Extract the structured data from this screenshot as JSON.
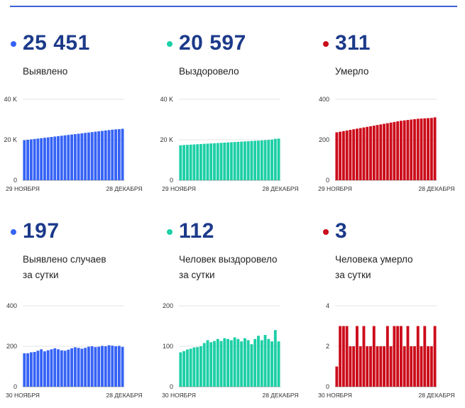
{
  "panels": [
    {
      "value": "25 451",
      "label_lines": [
        "Выявлено"
      ],
      "color": "#3663f5",
      "dot_color": "#3663f5",
      "x_start": "29 НОЯБРЯ",
      "x_end": "28 ДЕКАБРЯ"
    },
    {
      "value": "20 597",
      "label_lines": [
        "Выздоровело"
      ],
      "color": "#1ccfa6",
      "dot_color": "#1ccfa6",
      "x_start": "29 НОЯБРЯ",
      "x_end": "28 ДЕКАБРЯ"
    },
    {
      "value": "311",
      "label_lines": [
        "Умерло"
      ],
      "color": "#cc0c1a",
      "dot_color": "#cc0c1a",
      "x_start": "29 НОЯБРЯ",
      "x_end": "28 ДЕКАБРЯ"
    },
    {
      "value": "197",
      "label_lines": [
        "Выявлено случаев",
        "за сутки"
      ],
      "color": "#3663f5",
      "dot_color": "#3663f5",
      "x_start": "30 НОЯБРЯ",
      "x_end": "28 ДЕКАБРЯ"
    },
    {
      "value": "112",
      "label_lines": [
        "Человек выздоровело",
        "за сутки"
      ],
      "color": "#1ccfa6",
      "dot_color": "#1ccfa6",
      "x_start": "30 НОЯБРЯ",
      "x_end": "28 ДЕКАБРЯ"
    },
    {
      "value": "3",
      "label_lines": [
        "Человека умерло",
        "за сутки"
      ],
      "color": "#cc0c1a",
      "dot_color": "#cc0c1a",
      "x_start": "30 НОЯБРЯ",
      "x_end": "28 ДЕКАБРЯ"
    }
  ],
  "chart_data": [
    {
      "type": "bar",
      "series_name": "Выявлено",
      "ylim": [
        0,
        40000
      ],
      "ytick_labels": [
        "0",
        "20 K",
        "40 K"
      ],
      "ytick_values": [
        0,
        20000,
        40000
      ],
      "values": [
        19800,
        20000,
        20200,
        20400,
        20600,
        20800,
        21000,
        21200,
        21400,
        21600,
        21800,
        22000,
        22200,
        22400,
        22600,
        22800,
        23000,
        23200,
        23400,
        23600,
        23800,
        24000,
        24200,
        24400,
        24600,
        24800,
        25000,
        25150,
        25254,
        25451
      ]
    },
    {
      "type": "bar",
      "series_name": "Выздоровело",
      "ylim": [
        0,
        40000
      ],
      "ytick_labels": [
        "0",
        "20 K",
        "40 K"
      ],
      "ytick_values": [
        0,
        20000,
        40000
      ],
      "values": [
        17300,
        17400,
        17500,
        17600,
        17700,
        17800,
        17900,
        18000,
        18100,
        18200,
        18300,
        18400,
        18500,
        18600,
        18700,
        18800,
        18900,
        19000,
        19100,
        19200,
        19300,
        19400,
        19500,
        19600,
        19700,
        19800,
        19950,
        20100,
        20485,
        20597
      ]
    },
    {
      "type": "bar",
      "series_name": "Умерло",
      "ylim": [
        0,
        400
      ],
      "ytick_labels": [
        "0",
        "200",
        "400"
      ],
      "ytick_values": [
        0,
        200,
        400
      ],
      "values": [
        237,
        240,
        243,
        246,
        249,
        252,
        255,
        258,
        261,
        264,
        267,
        270,
        273,
        276,
        279,
        282,
        285,
        288,
        291,
        294,
        296,
        298,
        300,
        302,
        304,
        305,
        306,
        307,
        308,
        311
      ]
    },
    {
      "type": "bar",
      "series_name": "Выявлено случаев за сутки",
      "ylim": [
        0,
        400
      ],
      "ytick_labels": [
        "0",
        "200",
        "400"
      ],
      "ytick_values": [
        0,
        200,
        400
      ],
      "values": [
        165,
        165,
        170,
        172,
        178,
        185,
        175,
        180,
        185,
        190,
        185,
        180,
        178,
        183,
        190,
        195,
        192,
        188,
        192,
        198,
        200,
        196,
        198,
        202,
        200,
        205,
        203,
        200,
        202,
        197
      ]
    },
    {
      "type": "bar",
      "series_name": "Человек выздоровело за сутки",
      "ylim": [
        0,
        200
      ],
      "ytick_labels": [
        "0",
        "100",
        "200"
      ],
      "ytick_values": [
        0,
        100,
        200
      ],
      "values": [
        85,
        88,
        92,
        94,
        97,
        98,
        100,
        108,
        115,
        110,
        113,
        118,
        113,
        120,
        118,
        115,
        122,
        118,
        112,
        120,
        115,
        105,
        118,
        126,
        115,
        128,
        118,
        112,
        140,
        112
      ]
    },
    {
      "type": "bar",
      "series_name": "Человека умерло за сутки",
      "ylim": [
        0,
        4
      ],
      "ytick_labels": [
        "0",
        "2",
        "4"
      ],
      "ytick_values": [
        0,
        2,
        4
      ],
      "values": [
        1,
        3,
        3,
        3,
        2,
        2,
        3,
        2,
        3,
        2,
        2,
        3,
        2,
        2,
        2,
        3,
        2,
        3,
        3,
        3,
        2,
        3,
        2,
        2,
        3,
        2,
        3,
        2,
        2,
        3
      ]
    }
  ]
}
